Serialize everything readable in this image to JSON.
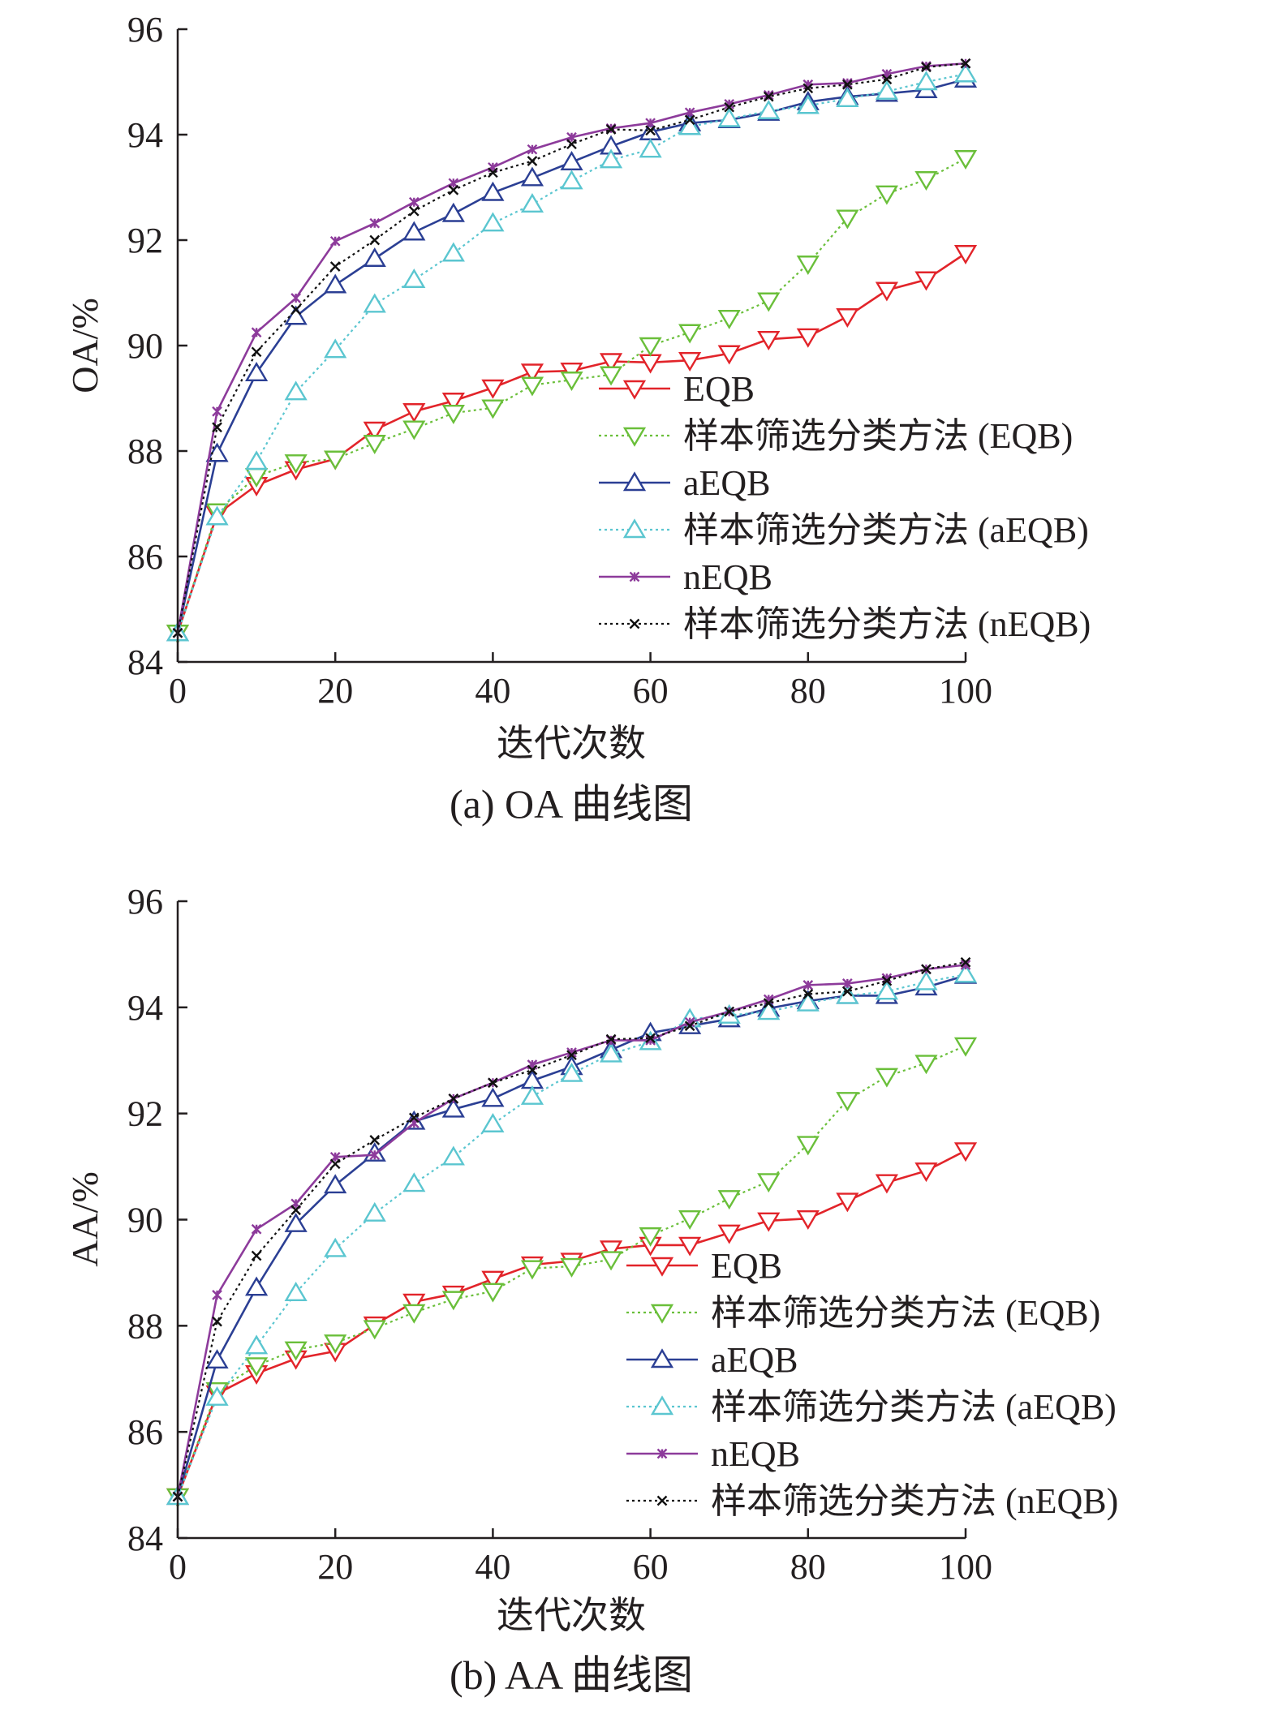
{
  "colors": {
    "EQB": "#e2242a",
    "filter_EQB": "#6abf3a",
    "aEQB": "#2b3f94",
    "filter_aEQB": "#5bc6d0",
    "nEQB": "#8d3b9b",
    "filter_nEQB": "#111111",
    "axis": "#231f20"
  },
  "chart_data": [
    {
      "type": "line",
      "title": "",
      "caption": "(a) OA 曲线图",
      "xlabel": "迭代次数",
      "ylabel": "OA/%",
      "xlim": [
        0,
        100
      ],
      "ylim": [
        84,
        96
      ],
      "xticks": [
        0,
        20,
        40,
        60,
        80,
        100
      ],
      "yticks": [
        84,
        86,
        88,
        90,
        92,
        94,
        96
      ],
      "x": [
        0,
        5,
        10,
        15,
        20,
        25,
        30,
        35,
        40,
        45,
        50,
        55,
        60,
        65,
        70,
        75,
        80,
        85,
        90,
        95,
        100
      ],
      "legend_position": "lower-right",
      "series": [
        {
          "key": "EQB",
          "name": "EQB",
          "marker": "triangle-down",
          "dash": "solid",
          "values": [
            84.55,
            86.8,
            87.35,
            87.65,
            87.85,
            88.4,
            88.75,
            88.95,
            89.2,
            89.5,
            89.52,
            89.7,
            89.68,
            89.72,
            89.85,
            90.12,
            90.17,
            90.55,
            91.05,
            91.25,
            91.75
          ]
        },
        {
          "key": "filter_EQB",
          "name": "样本筛选分类方法 (EQB)",
          "marker": "triangle-down",
          "dash": "dotted",
          "values": [
            84.55,
            86.85,
            87.52,
            87.78,
            87.85,
            88.15,
            88.42,
            88.72,
            88.82,
            89.25,
            89.35,
            89.45,
            90.0,
            90.25,
            90.52,
            90.85,
            91.55,
            92.42,
            92.88,
            93.15,
            93.55
          ]
        },
        {
          "key": "aEQB",
          "name": "aEQB",
          "marker": "triangle-up",
          "dash": "solid",
          "values": [
            84.55,
            87.95,
            89.48,
            90.55,
            91.15,
            91.65,
            92.15,
            92.5,
            92.9,
            93.18,
            93.48,
            93.78,
            94.05,
            94.22,
            94.28,
            94.42,
            94.62,
            94.72,
            94.78,
            94.85,
            95.05
          ]
        },
        {
          "key": "filter_aEQB",
          "name": "样本筛选分类方法 (aEQB)",
          "marker": "triangle-up",
          "dash": "dotted",
          "values": [
            84.55,
            86.75,
            87.8,
            89.12,
            89.92,
            90.78,
            91.25,
            91.75,
            92.32,
            92.68,
            93.12,
            93.52,
            93.72,
            94.15,
            94.3,
            94.45,
            94.55,
            94.68,
            94.82,
            95.0,
            95.15
          ]
        },
        {
          "key": "nEQB",
          "name": "nEQB",
          "marker": "star",
          "dash": "solid",
          "values": [
            84.55,
            88.75,
            90.25,
            90.9,
            91.98,
            92.32,
            92.72,
            93.08,
            93.38,
            93.72,
            93.95,
            94.12,
            94.22,
            94.42,
            94.58,
            94.75,
            94.95,
            94.98,
            95.15,
            95.3,
            95.35
          ]
        },
        {
          "key": "filter_nEQB",
          "name": "样本筛选分类方法 (nEQB)",
          "marker": "cross",
          "dash": "dotted",
          "values": [
            84.55,
            88.45,
            89.88,
            90.68,
            91.5,
            92.0,
            92.55,
            92.95,
            93.28,
            93.5,
            93.82,
            94.1,
            94.08,
            94.28,
            94.52,
            94.72,
            94.88,
            94.95,
            95.05,
            95.28,
            95.35
          ]
        }
      ]
    },
    {
      "type": "line",
      "title": "",
      "caption": "(b) AA 曲线图",
      "xlabel": "迭代次数",
      "ylabel": "AA/%",
      "xlim": [
        0,
        100
      ],
      "ylim": [
        84,
        96
      ],
      "xticks": [
        0,
        20,
        40,
        60,
        80,
        100
      ],
      "yticks": [
        84,
        86,
        88,
        90,
        92,
        94,
        96
      ],
      "x": [
        0,
        5,
        10,
        15,
        20,
        25,
        30,
        35,
        40,
        45,
        50,
        55,
        60,
        65,
        70,
        75,
        80,
        85,
        90,
        95,
        100
      ],
      "legend_position": "lower-right",
      "series": [
        {
          "key": "EQB",
          "name": "EQB",
          "marker": "triangle-down",
          "dash": "solid",
          "values": [
            84.78,
            86.72,
            87.1,
            87.38,
            87.52,
            88.02,
            88.45,
            88.6,
            88.88,
            89.15,
            89.22,
            89.45,
            89.52,
            89.52,
            89.75,
            89.98,
            90.02,
            90.35,
            90.7,
            90.92,
            91.3
          ]
        },
        {
          "key": "filter_EQB",
          "name": "样本筛选分类方法 (EQB)",
          "marker": "triangle-down",
          "dash": "dotted",
          "values": [
            84.78,
            86.78,
            87.25,
            87.55,
            87.68,
            87.95,
            88.25,
            88.5,
            88.65,
            89.08,
            89.12,
            89.25,
            89.7,
            90.02,
            90.4,
            90.72,
            91.42,
            92.25,
            92.7,
            92.95,
            93.28
          ]
        },
        {
          "key": "aEQB",
          "name": "aEQB",
          "marker": "triangle-up",
          "dash": "solid",
          "values": [
            84.78,
            87.35,
            88.72,
            89.92,
            90.65,
            91.25,
            91.85,
            92.08,
            92.28,
            92.62,
            92.88,
            93.2,
            93.52,
            93.65,
            93.78,
            93.98,
            94.12,
            94.22,
            94.22,
            94.38,
            94.6
          ]
        },
        {
          "key": "filter_aEQB",
          "name": "样本筛选分类方法 (aEQB)",
          "marker": "triangle-up",
          "dash": "dotted",
          "values": [
            84.78,
            86.65,
            87.62,
            88.62,
            89.45,
            90.12,
            90.68,
            91.18,
            91.8,
            92.32,
            92.75,
            93.12,
            93.35,
            93.78,
            93.85,
            93.92,
            94.08,
            94.22,
            94.3,
            94.48,
            94.62
          ]
        },
        {
          "key": "nEQB",
          "name": "nEQB",
          "marker": "star",
          "dash": "solid",
          "values": [
            84.78,
            88.58,
            89.82,
            90.3,
            91.18,
            91.22,
            91.82,
            92.28,
            92.58,
            92.92,
            93.15,
            93.38,
            93.38,
            93.72,
            93.92,
            94.15,
            94.42,
            94.45,
            94.55,
            94.72,
            94.8
          ]
        },
        {
          "key": "filter_nEQB",
          "name": "样本筛选分类方法 (nEQB)",
          "marker": "cross",
          "dash": "dotted",
          "values": [
            84.78,
            88.08,
            89.32,
            90.18,
            91.05,
            91.5,
            91.92,
            92.28,
            92.58,
            92.82,
            93.1,
            93.4,
            93.42,
            93.65,
            93.92,
            94.08,
            94.25,
            94.3,
            94.5,
            94.72,
            94.85
          ]
        }
      ]
    }
  ]
}
